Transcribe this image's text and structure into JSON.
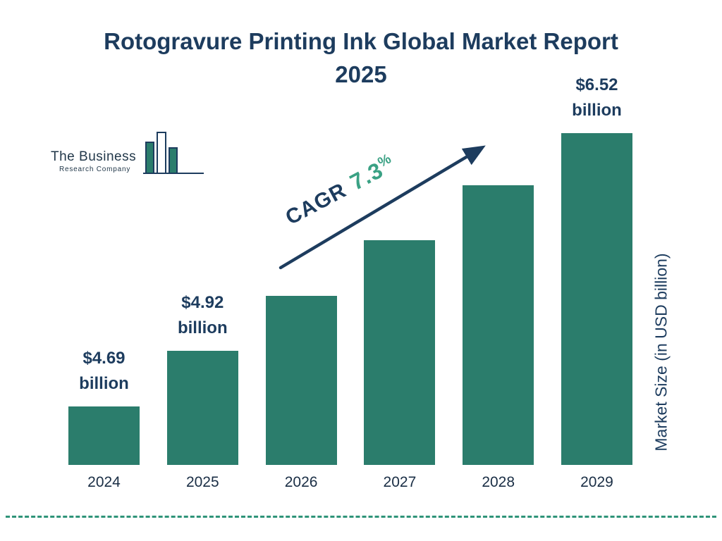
{
  "title": "Rotogravure Printing Ink Global Market Report 2025",
  "logo": {
    "name_line1": "The Business",
    "name_line2": "Research Company"
  },
  "cagr": {
    "label": "CAGR",
    "value": "7.3",
    "percent_sign": "%"
  },
  "y_axis_label": "Market Size (in USD billion)",
  "colors": {
    "navy": "#1d3c5e",
    "teal": "#2b7d6c",
    "green": "#3aa184"
  },
  "chart_data": {
    "type": "bar",
    "title": "Rotogravure Printing Ink Global Market Report 2025",
    "categories": [
      "2024",
      "2025",
      "2026",
      "2027",
      "2028",
      "2029"
    ],
    "values": [
      4.69,
      4.92,
      5.28,
      5.66,
      6.08,
      6.52
    ],
    "estimated_indices": [
      2,
      3,
      4
    ],
    "unit": "USD billion",
    "ylabel": "Market Size (in USD billion)",
    "cagr_percent": 7.3,
    "bar_color": "#2b7d6c",
    "legend": "none",
    "grid": false,
    "labeled_points": [
      {
        "index": 0,
        "lines": [
          "$4.69",
          "billion"
        ]
      },
      {
        "index": 1,
        "lines": [
          "$4.92",
          "billion"
        ]
      },
      {
        "index": 5,
        "lines": [
          "$6.52",
          "billion"
        ]
      }
    ]
  }
}
